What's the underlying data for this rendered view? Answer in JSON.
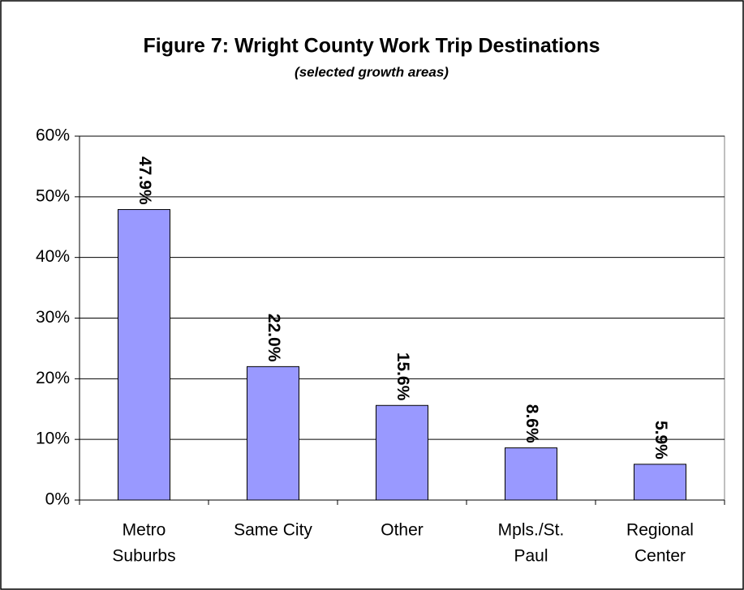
{
  "chart_data": {
    "type": "bar",
    "title": "Figure 7: Wright County Work Trip Destinations",
    "subtitle": "(selected growth areas)",
    "categories": [
      [
        "Metro",
        "Suburbs"
      ],
      [
        "Same City"
      ],
      [
        "Other"
      ],
      [
        "Mpls./St.",
        "Paul"
      ],
      [
        "Regional",
        "Center"
      ]
    ],
    "values": [
      47.9,
      22.0,
      15.6,
      8.6,
      5.9
    ],
    "value_labels": [
      "47.9%",
      "22.0%",
      "15.6%",
      "8.6%",
      "5.9%"
    ],
    "color": "#9999ff",
    "ylim": [
      0,
      60
    ],
    "yticks": [
      {
        "value": 0,
        "label": "0%"
      },
      {
        "value": 10,
        "label": "10%"
      },
      {
        "value": 20,
        "label": "20%"
      },
      {
        "value": 30,
        "label": "30%"
      },
      {
        "value": 40,
        "label": "40%"
      },
      {
        "value": 50,
        "label": "50%"
      },
      {
        "value": 60,
        "label": "60%"
      }
    ],
    "grid": true
  }
}
